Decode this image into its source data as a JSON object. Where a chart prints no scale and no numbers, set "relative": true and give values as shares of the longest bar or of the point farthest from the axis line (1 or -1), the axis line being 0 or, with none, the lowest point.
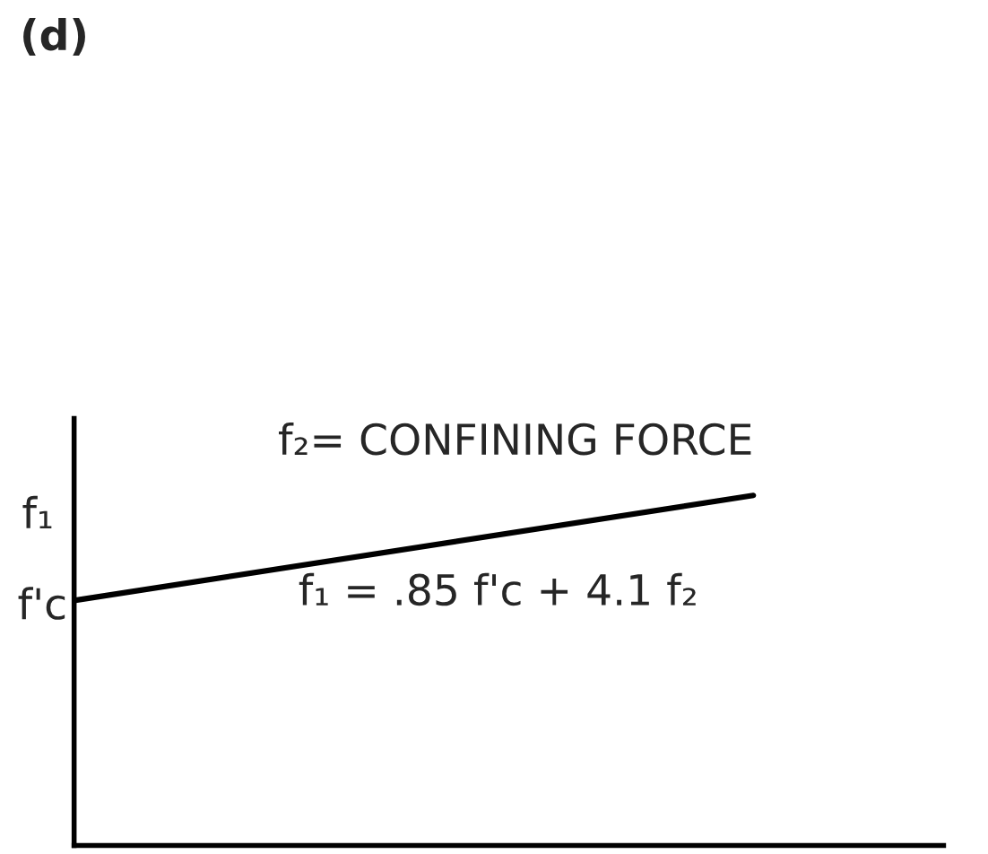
{
  "chart_data": {
    "type": "line",
    "title": "(d)",
    "relative": true,
    "categories": [
      null,
      null
    ],
    "series": [
      {
        "color": "#000000",
        "values": [
          0.7,
          1
        ]
      }
    ],
    "marker": "none",
    "line_style": "solid",
    "legend": false,
    "annotations": [
      "f₂= CONFINING FORCE",
      "f₁ = .85 f'c + 4.1 f₂",
      "f₁",
      "f'c"
    ]
  }
}
